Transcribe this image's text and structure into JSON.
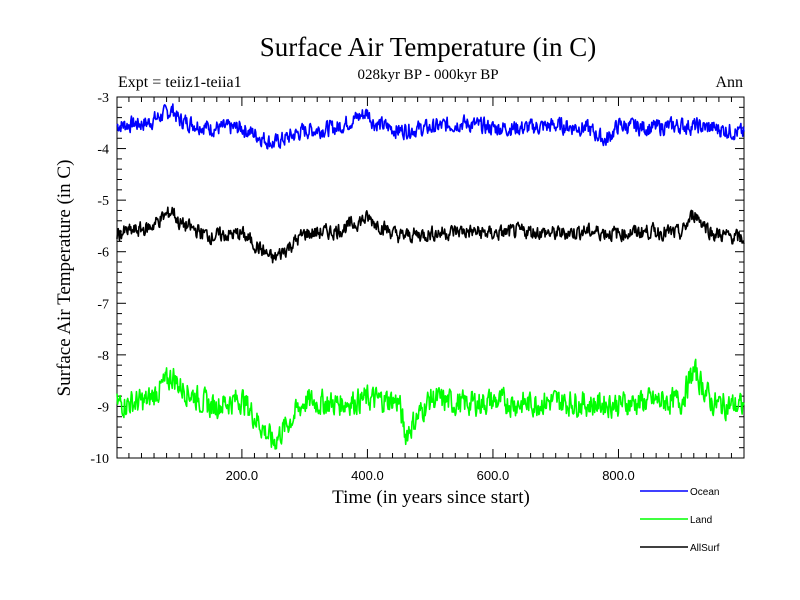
{
  "chart_data": {
    "type": "line",
    "title": "Surface Air Temperature (in C)",
    "subtitle": "028kyr BP - 000kyr BP",
    "left_label": "Expt = teiiz1-teiia1",
    "right_label": "Ann",
    "xlabel": "Time (in years since start)",
    "ylabel": "Surface Air Temperature (in C)",
    "xlim": [
      1,
      1000
    ],
    "ylim": [
      -10,
      -3
    ],
    "x_ticks": [
      200,
      400,
      600,
      800
    ],
    "x_tick_labels": [
      "200.0",
      "400.0",
      "600.0",
      "800.0"
    ],
    "y_ticks": [
      -3,
      -4,
      -5,
      -6,
      -7,
      -8,
      -9,
      -10
    ],
    "y_tick_labels": [
      "-3",
      "-4",
      "-5",
      "-6",
      "-7",
      "-8",
      "-9",
      "-10"
    ],
    "grid": false,
    "legend_position": "bottom-right",
    "series": [
      {
        "name": "Ocean",
        "color": "#0000ff",
        "mean": -3.6,
        "amplitude": 0.14,
        "x": [
          1,
          50,
          90,
          100,
          150,
          200,
          250,
          300,
          350,
          400,
          410,
          450,
          500,
          550,
          600,
          650,
          700,
          750,
          780,
          800,
          850,
          900,
          950,
          1000
        ],
        "values": [
          -3.55,
          -3.5,
          -3.25,
          -3.45,
          -3.6,
          -3.6,
          -3.9,
          -3.65,
          -3.6,
          -3.3,
          -3.5,
          -3.65,
          -3.6,
          -3.5,
          -3.6,
          -3.6,
          -3.55,
          -3.6,
          -3.85,
          -3.55,
          -3.6,
          -3.55,
          -3.6,
          -3.7
        ]
      },
      {
        "name": "Land",
        "color": "#00ff00",
        "mean": -8.95,
        "amplitude": 0.22,
        "x": [
          1,
          50,
          90,
          100,
          150,
          200,
          250,
          300,
          350,
          400,
          450,
          460,
          500,
          550,
          600,
          650,
          700,
          750,
          800,
          850,
          900,
          920,
          950,
          1000
        ],
        "values": [
          -8.95,
          -8.9,
          -8.4,
          -8.6,
          -9.0,
          -8.85,
          -9.7,
          -8.9,
          -8.95,
          -8.85,
          -8.9,
          -9.55,
          -8.85,
          -8.95,
          -8.9,
          -8.95,
          -8.9,
          -8.95,
          -8.95,
          -8.9,
          -8.9,
          -8.3,
          -8.95,
          -9.0
        ]
      },
      {
        "name": "AllSurf",
        "color": "#000000",
        "mean": -5.65,
        "amplitude": 0.13,
        "x": [
          1,
          50,
          90,
          100,
          150,
          200,
          250,
          300,
          350,
          400,
          450,
          500,
          550,
          600,
          650,
          700,
          750,
          800,
          850,
          900,
          920,
          950,
          1000
        ],
        "values": [
          -5.65,
          -5.55,
          -5.2,
          -5.45,
          -5.7,
          -5.65,
          -6.15,
          -5.65,
          -5.6,
          -5.35,
          -5.7,
          -5.65,
          -5.6,
          -5.65,
          -5.6,
          -5.65,
          -5.6,
          -5.65,
          -5.6,
          -5.65,
          -5.25,
          -5.65,
          -5.75
        ]
      }
    ]
  }
}
